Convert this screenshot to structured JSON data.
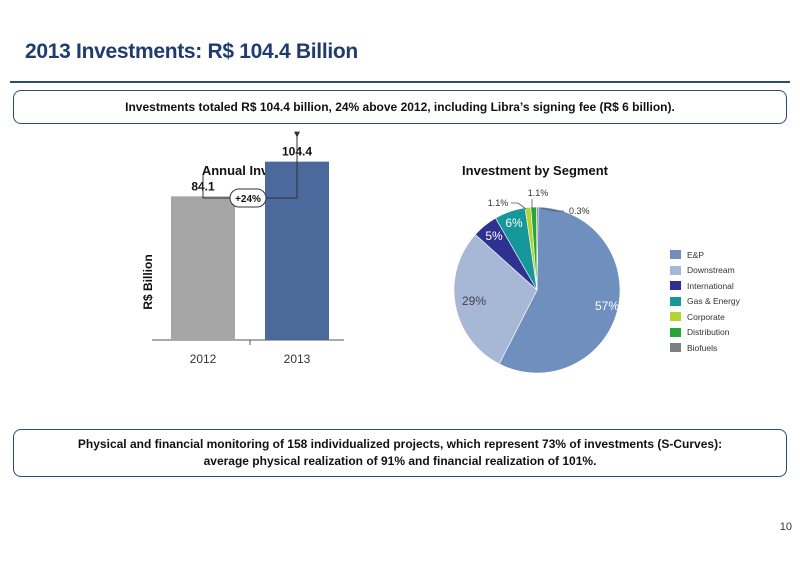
{
  "page": {
    "title": "2013 Investments: R$ 104.4 Billion",
    "summary": "Investments totaled R$ 104.4 billion, 24% above 2012, including Libra’s signing fee (R$ 6 billion).",
    "footer_line1": "Physical and financial monitoring of 158 individualized projects, which represent 73% of investments (S-Curves):",
    "footer_line2": "average physical realization of 91% and financial realization of 101%.",
    "page_number": "10"
  },
  "chart_data": [
    {
      "type": "bar",
      "title": "Annual Investment",
      "ylabel": "R$ Billion",
      "categories": [
        "2012",
        "2013"
      ],
      "values": [
        84.1,
        104.4
      ],
      "value_labels": [
        "84.1",
        "104.4"
      ],
      "colors": [
        "#a6a6a6",
        "#4b6a9b"
      ],
      "growth_annotation": "+24%",
      "ylim": [
        0,
        120
      ]
    },
    {
      "type": "pie",
      "title": "Investment by Segment",
      "slices": [
        {
          "name": "E&P",
          "value": 57,
          "label": "57%",
          "color": "#6f8fbf"
        },
        {
          "name": "Downstream",
          "value": 29,
          "label": "29%",
          "color": "#a7b7d6"
        },
        {
          "name": "International",
          "value": 5,
          "label": "5%",
          "color": "#2f3192"
        },
        {
          "name": "Gas & Energy",
          "value": 6,
          "label": "6%",
          "color": "#16989a"
        },
        {
          "name": "Corporate",
          "value": 1.1,
          "label": "1.1%",
          "color": "#b5d334"
        },
        {
          "name": "Distribution",
          "value": 1.1,
          "label": "1.1%",
          "color": "#27a53a"
        },
        {
          "name": "Biofuels",
          "value": 0.3,
          "label": "0.3%",
          "color": "#7f7f7f"
        }
      ],
      "legend_position": "right"
    }
  ]
}
